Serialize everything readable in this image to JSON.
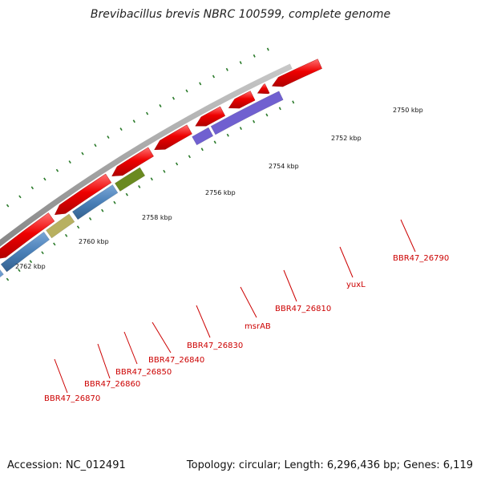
{
  "title": "Brevibacillus brevis NBRC 100599, complete genome",
  "footer": {
    "accession": "Accession: NC_012491",
    "stats": "Topology: circular; Length: 6,296,436 bp; Genes: 6,119"
  },
  "kbp_labels": [
    "2750 kbp",
    "2752 kbp",
    "2754 kbp",
    "2756 kbp",
    "2758 kbp",
    "2760 kbp",
    "2762 kbp"
  ],
  "gene_labels": [
    "BBR47_26790",
    "yuxL",
    "BBR47_26810",
    "msrAB",
    "BBR47_26830",
    "BBR47_26840",
    "BBR47_26850",
    "BBR47_26860",
    "BBR47_26870"
  ],
  "colors": {
    "backbone": "#808080",
    "forward_gene": "#ee0000",
    "reverse_gene": "#4a80b8",
    "reverse_olive": "#6a8a20",
    "reverse_khaki": "#b8b060",
    "reverse_purple": "#7060d0",
    "tick": "#2a7a2a",
    "label": "#cc0000"
  },
  "icons": [
    "forward-strand-arrow",
    "reverse-strand-arrow"
  ]
}
